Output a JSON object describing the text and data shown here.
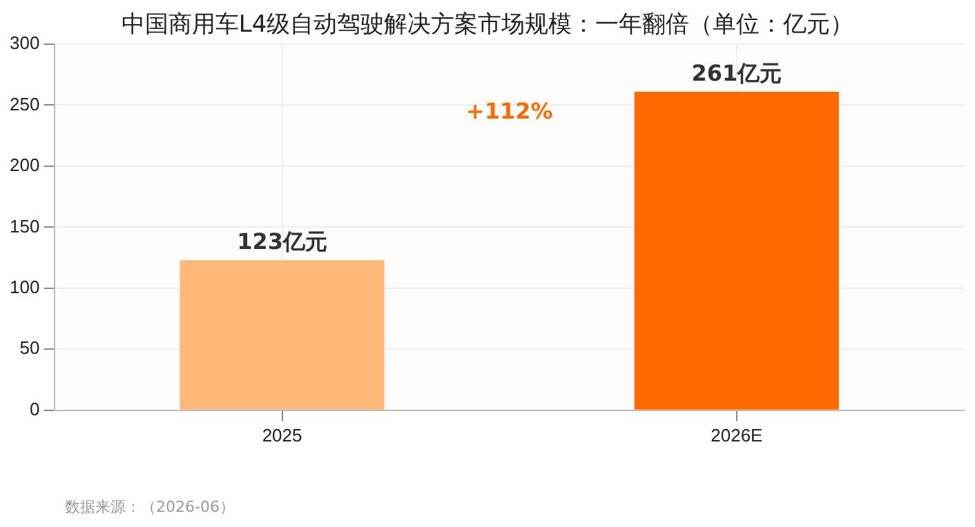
{
  "chart_data": {
    "type": "bar",
    "title": "中国商用车L4级自动驾驶解决方案市场规模：一年翻倍（单位：亿元）",
    "categories": [
      "2025",
      "2026E"
    ],
    "values": [
      123,
      261
    ],
    "colors": [
      "#ffb877",
      "#ff6a00"
    ],
    "value_labels": [
      "123亿元",
      "261亿元"
    ],
    "ylim": [
      0,
      300
    ],
    "yticks": [
      0,
      50,
      100,
      150,
      200,
      250,
      300
    ],
    "grid": true,
    "legend": false,
    "annotations": [
      "+112%",
      "数据来源：（2026-06）"
    ]
  }
}
